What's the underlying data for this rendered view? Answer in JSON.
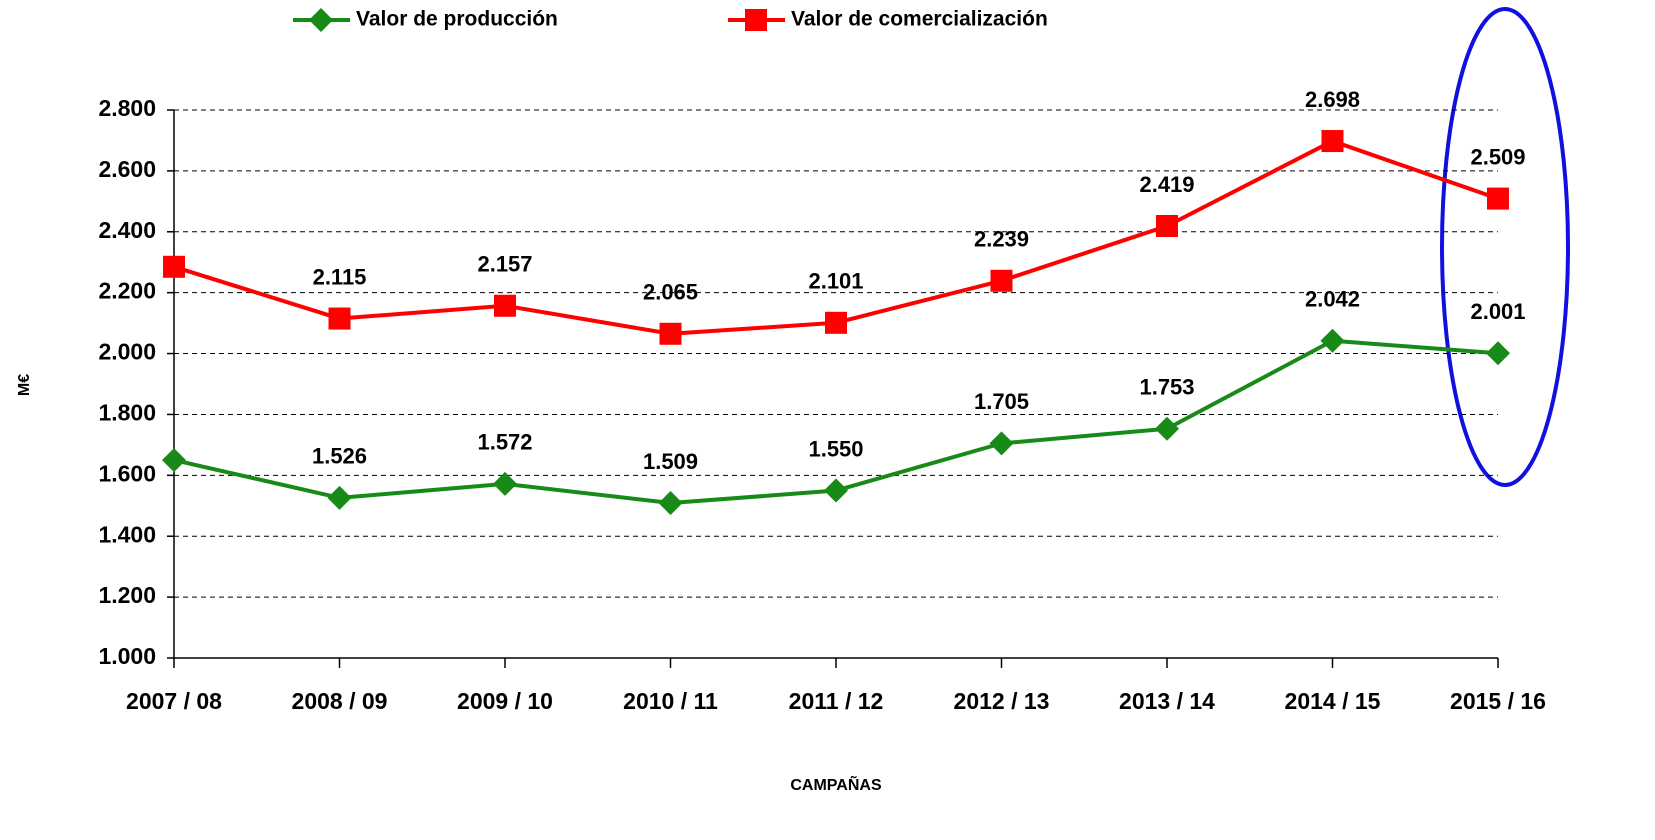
{
  "chart_data": {
    "type": "line",
    "x_label": "CAMPAÑAS",
    "y_label": "M€",
    "categories": [
      "2007 / 08",
      "2008 / 09",
      "2009 / 10",
      "2010 / 11",
      "2011 / 12",
      "2012 / 13",
      "2013 / 14",
      "2014 / 15",
      "2015 / 16"
    ],
    "series": [
      {
        "name": "Valor de producción",
        "color": "#188a18",
        "marker": "diamond",
        "values": [
          1650,
          1526,
          1572,
          1509,
          1550,
          1705,
          1753,
          2042,
          2001
        ],
        "value_labels": [
          null,
          "1.526",
          "1.572",
          "1.509",
          "1.550",
          "1.705",
          "1.753",
          "2.042",
          "2.001"
        ]
      },
      {
        "name": "Valor de comercialización",
        "color": "#ff0000",
        "marker": "square",
        "values": [
          2285,
          2115,
          2157,
          2065,
          2101,
          2239,
          2419,
          2698,
          2509
        ],
        "value_labels": [
          null,
          "2.115",
          "2.157",
          "2.065",
          "2.101",
          "2.239",
          "2.419",
          "2.698",
          "2.509"
        ]
      }
    ],
    "ylim": [
      1000,
      2800
    ],
    "yticks": [
      {
        "value": 1000,
        "label": "1.000"
      },
      {
        "value": 1200,
        "label": "1.200"
      },
      {
        "value": 1400,
        "label": "1.400"
      },
      {
        "value": 1600,
        "label": "1.600"
      },
      {
        "value": 1800,
        "label": "1.800"
      },
      {
        "value": 2000,
        "label": "2.000"
      },
      {
        "value": 2200,
        "label": "2.200"
      },
      {
        "value": 2400,
        "label": "2.400"
      },
      {
        "value": 2600,
        "label": "2.600"
      },
      {
        "value": 2800,
        "label": "2.800"
      }
    ],
    "grid": true,
    "legend": "top"
  }
}
